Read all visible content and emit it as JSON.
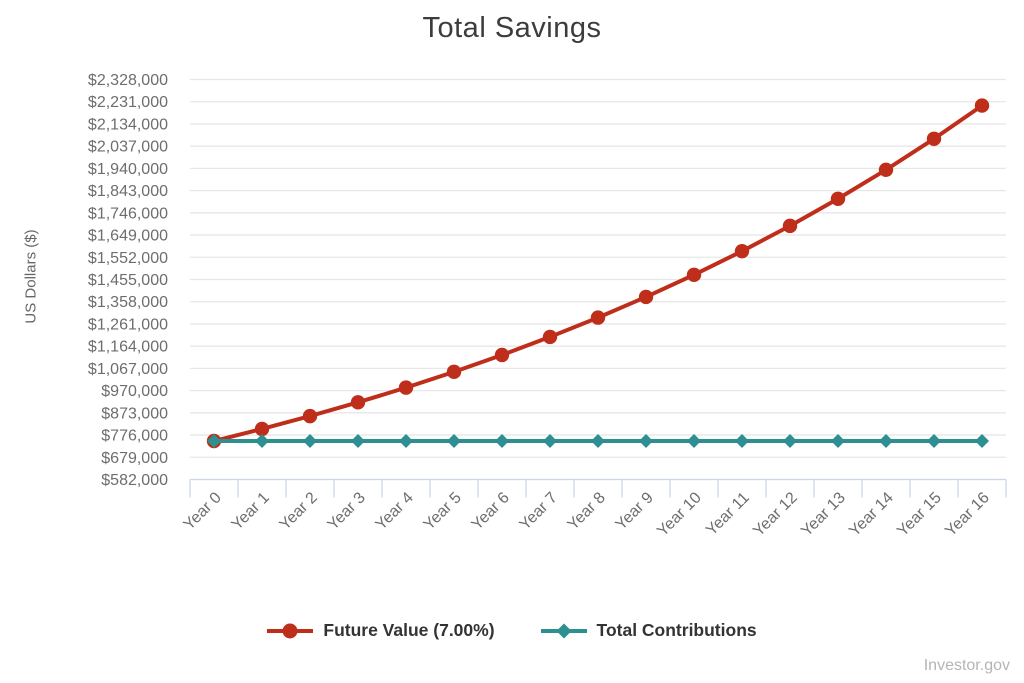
{
  "page": {
    "watermark": "Investor.gov"
  },
  "chart_data": {
    "type": "line",
    "title": "Total Savings",
    "ylabel": "US Dollars ($)",
    "xlabel": "",
    "categories": [
      "Year 0",
      "Year 1",
      "Year 2",
      "Year 3",
      "Year 4",
      "Year 5",
      "Year 6",
      "Year 7",
      "Year 8",
      "Year 9",
      "Year 10",
      "Year 11",
      "Year 12",
      "Year 13",
      "Year 14",
      "Year 15",
      "Year 16"
    ],
    "series": [
      {
        "name": "Future Value (7.00%)",
        "color": "#bf2e1a",
        "marker": "circle",
        "values": [
          750000,
          802500,
          858675,
          918782,
          983097,
          1051914,
          1125548,
          1204336,
          1288640,
          1378845,
          1475364,
          1578639,
          1689144,
          1807384,
          1933901,
          2069274,
          2214123
        ]
      },
      {
        "name": "Total Contributions",
        "color": "#2b908f",
        "marker": "diamond",
        "values": [
          750000,
          750000,
          750000,
          750000,
          750000,
          750000,
          750000,
          750000,
          750000,
          750000,
          750000,
          750000,
          750000,
          750000,
          750000,
          750000,
          750000
        ]
      }
    ],
    "ylim": [
      582000,
      2328000
    ],
    "ytick_interval": 97000,
    "ytick_prefix": "$",
    "ytick_labels": [
      "$582,000",
      "$679,000",
      "$776,000",
      "$873,000",
      "$970,000",
      "$1,067,000",
      "$1,164,000",
      "$1,261,000",
      "$1,358,000",
      "$1,455,000",
      "$1,552,000",
      "$1,649,000",
      "$1,746,000",
      "$1,843,000",
      "$1,940,000",
      "$2,037,000",
      "$2,134,000",
      "$2,231,000",
      "$2,328,000"
    ],
    "grid": "horizontal",
    "legend_position": "bottom",
    "grid_color": "#e7e7e7",
    "axis_color": "#ccd6eb",
    "label_color": "#6d6d6d",
    "title_color": "#3c3c3c"
  }
}
